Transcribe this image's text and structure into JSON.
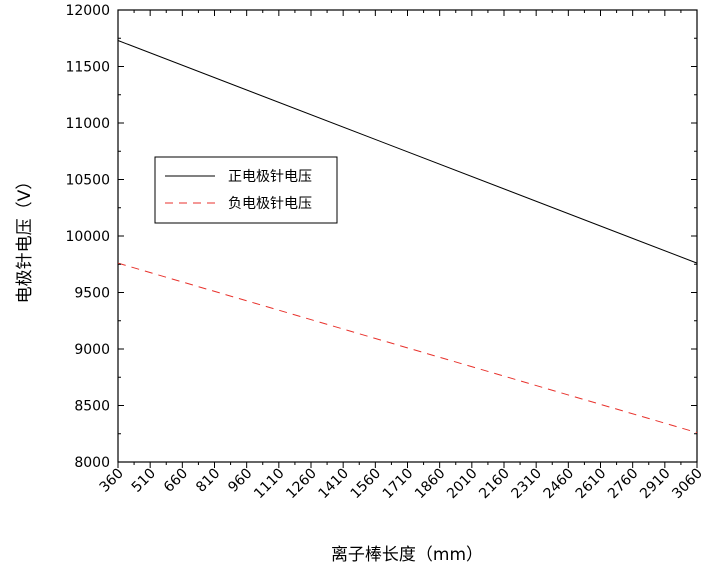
{
  "chart_data": {
    "type": "line",
    "xlabel": "离子棒长度（mm）",
    "ylabel": "电极针电压（V）",
    "xlim": [
      360,
      3060
    ],
    "ylim": [
      8000,
      12000
    ],
    "x_ticks": [
      360,
      510,
      660,
      810,
      960,
      1110,
      1260,
      1410,
      1560,
      1710,
      1860,
      2010,
      2160,
      2310,
      2460,
      2610,
      2760,
      2910,
      3060
    ],
    "y_ticks": [
      8000,
      8500,
      9000,
      9500,
      10000,
      10500,
      11000,
      11500,
      12000
    ],
    "grid": false,
    "legend_position": "upper-left",
    "series": [
      {
        "name": "正电极针电压",
        "color": "#000000",
        "dash": "solid",
        "x": [
          360,
          3060
        ],
        "y": [
          11730,
          9760
        ]
      },
      {
        "name": "负电极针电压",
        "color": "#e8322c",
        "dash": "dashed",
        "x": [
          360,
          3060
        ],
        "y": [
          9760,
          8260
        ]
      }
    ]
  }
}
